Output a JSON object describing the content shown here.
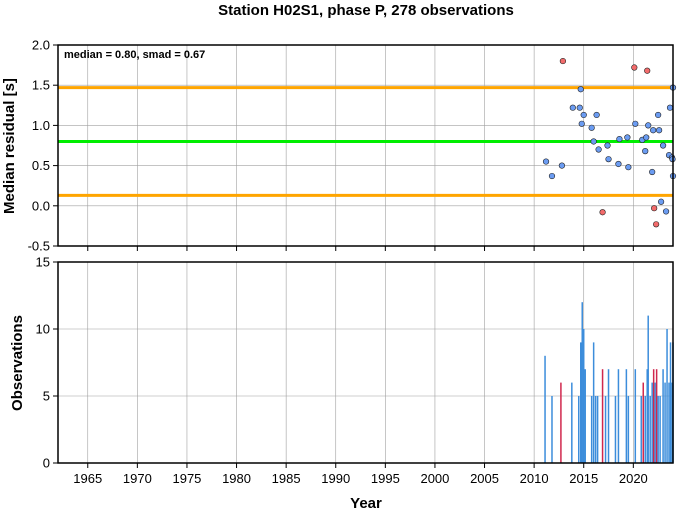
{
  "title": "Station H02S1, phase P, 278 observations",
  "chart_data": [
    {
      "type": "scatter",
      "annotation": "median = 0.80, smad = 0.67",
      "xlabel": "",
      "ylabel": "Median residual [s]",
      "xlim": [
        1962,
        2024
      ],
      "ylim": [
        -0.5,
        2.0
      ],
      "yticks": [
        "-0.5",
        "0.0",
        "0.5",
        "1.0",
        "1.5",
        "2.0"
      ],
      "grid": true,
      "hlines": [
        {
          "y": 1.47,
          "color": "#ffa500"
        },
        {
          "y": 0.8,
          "color": "#00ee00"
        },
        {
          "y": 0.13,
          "color": "#ffa500"
        }
      ],
      "points": [
        {
          "x": 2011.2,
          "y": 0.55,
          "color": "#6b9cf2"
        },
        {
          "x": 2011.8,
          "y": 0.37,
          "color": "#6b9cf2"
        },
        {
          "x": 2012.8,
          "y": 0.5,
          "color": "#6b9cf2"
        },
        {
          "x": 2012.9,
          "y": 1.8,
          "color": "#f26b6b"
        },
        {
          "x": 2013.9,
          "y": 1.22,
          "color": "#6b9cf2"
        },
        {
          "x": 2014.6,
          "y": 1.22,
          "color": "#6b9cf2"
        },
        {
          "x": 2014.7,
          "y": 1.45,
          "color": "#6b9cf2"
        },
        {
          "x": 2014.8,
          "y": 1.02,
          "color": "#6b9cf2"
        },
        {
          "x": 2015.0,
          "y": 1.13,
          "color": "#6b9cf2"
        },
        {
          "x": 2015.8,
          "y": 0.97,
          "color": "#6b9cf2"
        },
        {
          "x": 2016.0,
          "y": 0.8,
          "color": "#6b9cf2"
        },
        {
          "x": 2016.3,
          "y": 1.13,
          "color": "#6b9cf2"
        },
        {
          "x": 2016.5,
          "y": 0.7,
          "color": "#6b9cf2"
        },
        {
          "x": 2016.9,
          "y": -0.08,
          "color": "#f26b6b"
        },
        {
          "x": 2017.4,
          "y": 0.75,
          "color": "#6b9cf2"
        },
        {
          "x": 2017.5,
          "y": 0.58,
          "color": "#6b9cf2"
        },
        {
          "x": 2018.5,
          "y": 0.52,
          "color": "#6b9cf2"
        },
        {
          "x": 2018.6,
          "y": 0.83,
          "color": "#6b9cf2"
        },
        {
          "x": 2019.4,
          "y": 0.85,
          "color": "#6b9cf2"
        },
        {
          "x": 2019.5,
          "y": 0.48,
          "color": "#6b9cf2"
        },
        {
          "x": 2020.1,
          "y": 1.72,
          "color": "#f26b6b"
        },
        {
          "x": 2020.2,
          "y": 1.02,
          "color": "#6b9cf2"
        },
        {
          "x": 2020.9,
          "y": 0.82,
          "color": "#6b9cf2"
        },
        {
          "x": 2021.2,
          "y": 0.68,
          "color": "#6b9cf2"
        },
        {
          "x": 2021.3,
          "y": 0.85,
          "color": "#6b9cf2"
        },
        {
          "x": 2021.4,
          "y": 1.68,
          "color": "#f26b6b"
        },
        {
          "x": 2021.5,
          "y": 1.0,
          "color": "#6b9cf2"
        },
        {
          "x": 2021.9,
          "y": 0.42,
          "color": "#6b9cf2"
        },
        {
          "x": 2022.0,
          "y": 0.94,
          "color": "#6b9cf2"
        },
        {
          "x": 2022.1,
          "y": -0.03,
          "color": "#f26b6b"
        },
        {
          "x": 2022.3,
          "y": -0.23,
          "color": "#f26b6b"
        },
        {
          "x": 2022.5,
          "y": 1.13,
          "color": "#6b9cf2"
        },
        {
          "x": 2022.6,
          "y": 0.94,
          "color": "#6b9cf2"
        },
        {
          "x": 2022.8,
          "y": 0.05,
          "color": "#6b9cf2"
        },
        {
          "x": 2023.0,
          "y": 0.75,
          "color": "#6b9cf2"
        },
        {
          "x": 2023.3,
          "y": -0.07,
          "color": "#6b9cf2"
        },
        {
          "x": 2023.6,
          "y": 0.63,
          "color": "#6b9cf2"
        },
        {
          "x": 2023.7,
          "y": 1.22,
          "color": "#6b9cf2"
        },
        {
          "x": 2023.9,
          "y": 0.6,
          "color": "#6b9cf2"
        },
        {
          "x": 2023.95,
          "y": 0.58,
          "color": "#6b9cf2"
        },
        {
          "x": 2024.0,
          "y": 1.47,
          "color": "#6b9cf2"
        },
        {
          "x": 2024.0,
          "y": 0.37,
          "color": "#6b9cf2"
        }
      ]
    },
    {
      "type": "bar",
      "xlabel": "Year",
      "ylabel": "Observations",
      "xlim": [
        1962,
        2024
      ],
      "ylim": [
        0,
        15
      ],
      "xticks": [
        "1965",
        "1970",
        "1975",
        "1980",
        "1985",
        "1990",
        "1995",
        "2000",
        "2005",
        "2010",
        "2015",
        "2020"
      ],
      "yticks": [
        "0",
        "5",
        "10",
        "15"
      ],
      "grid": true,
      "bars": [
        {
          "x": 2011.1,
          "value": 8,
          "color": "#3c8ddb"
        },
        {
          "x": 2011.8,
          "value": 5,
          "color": "#3c8ddb"
        },
        {
          "x": 2012.7,
          "value": 6,
          "color": "#d0284d"
        },
        {
          "x": 2013.8,
          "value": 6,
          "color": "#3c8ddb"
        },
        {
          "x": 2014.5,
          "value": 5,
          "color": "#3c8ddb"
        },
        {
          "x": 2014.7,
          "value": 9,
          "color": "#3c8ddb"
        },
        {
          "x": 2014.85,
          "value": 12,
          "color": "#3c8ddb"
        },
        {
          "x": 2015.0,
          "value": 10,
          "color": "#3c8ddb"
        },
        {
          "x": 2015.15,
          "value": 7,
          "color": "#3c8ddb"
        },
        {
          "x": 2015.8,
          "value": 5,
          "color": "#3c8ddb"
        },
        {
          "x": 2016.0,
          "value": 9,
          "color": "#3c8ddb"
        },
        {
          "x": 2016.2,
          "value": 5,
          "color": "#3c8ddb"
        },
        {
          "x": 2016.4,
          "value": 5,
          "color": "#3c8ddb"
        },
        {
          "x": 2016.9,
          "value": 7,
          "color": "#d0284d"
        },
        {
          "x": 2017.2,
          "value": 5,
          "color": "#3c8ddb"
        },
        {
          "x": 2017.5,
          "value": 7,
          "color": "#3c8ddb"
        },
        {
          "x": 2018.2,
          "value": 5,
          "color": "#3c8ddb"
        },
        {
          "x": 2018.5,
          "value": 7,
          "color": "#3c8ddb"
        },
        {
          "x": 2019.3,
          "value": 7,
          "color": "#3c8ddb"
        },
        {
          "x": 2019.5,
          "value": 5,
          "color": "#3c8ddb"
        },
        {
          "x": 2020.2,
          "value": 7,
          "color": "#3c8ddb"
        },
        {
          "x": 2020.8,
          "value": 5,
          "color": "#3c8ddb"
        },
        {
          "x": 2021.0,
          "value": 6,
          "color": "#d0284d"
        },
        {
          "x": 2021.2,
          "value": 5,
          "color": "#3c8ddb"
        },
        {
          "x": 2021.4,
          "value": 7,
          "color": "#3c8ddb"
        },
        {
          "x": 2021.5,
          "value": 11,
          "color": "#3c8ddb"
        },
        {
          "x": 2021.7,
          "value": 5,
          "color": "#3c8ddb"
        },
        {
          "x": 2021.9,
          "value": 6,
          "color": "#3c8ddb"
        },
        {
          "x": 2022.05,
          "value": 7,
          "color": "#d0284d"
        },
        {
          "x": 2022.2,
          "value": 6,
          "color": "#3c8ddb"
        },
        {
          "x": 2022.35,
          "value": 7,
          "color": "#d0284d"
        },
        {
          "x": 2022.5,
          "value": 5,
          "color": "#3c8ddb"
        },
        {
          "x": 2022.7,
          "value": 5,
          "color": "#3c8ddb"
        },
        {
          "x": 2023.0,
          "value": 7,
          "color": "#3c8ddb"
        },
        {
          "x": 2023.2,
          "value": 6,
          "color": "#3c8ddb"
        },
        {
          "x": 2023.4,
          "value": 10,
          "color": "#3c8ddb"
        },
        {
          "x": 2023.6,
          "value": 6,
          "color": "#3c8ddb"
        },
        {
          "x": 2023.75,
          "value": 9,
          "color": "#3c8ddb"
        },
        {
          "x": 2023.9,
          "value": 6,
          "color": "#3c8ddb"
        },
        {
          "x": 2024.0,
          "value": 9,
          "color": "#3c8ddb"
        }
      ]
    }
  ]
}
